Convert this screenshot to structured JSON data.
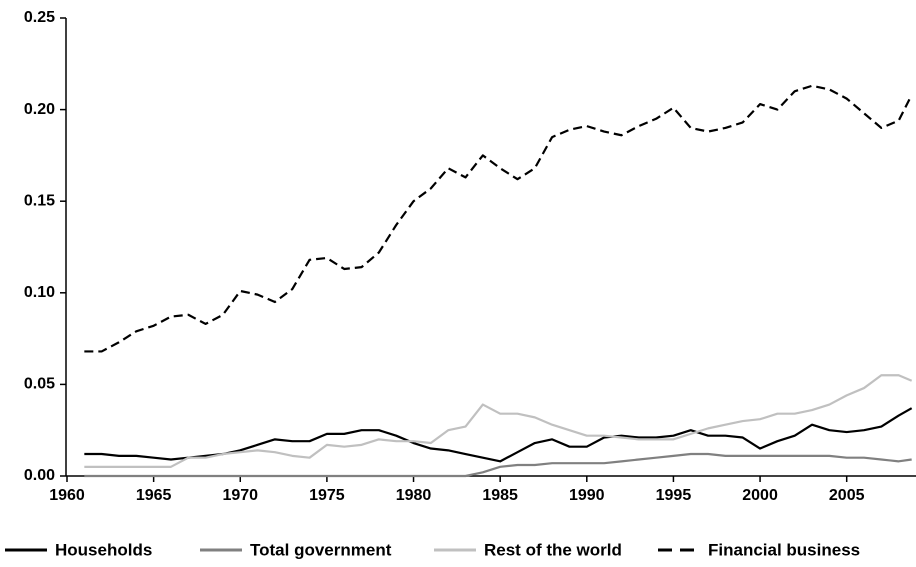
{
  "chart_data": {
    "type": "line",
    "x": [
      1961,
      1962,
      1963,
      1964,
      1965,
      1966,
      1967,
      1968,
      1969,
      1970,
      1971,
      1972,
      1973,
      1974,
      1975,
      1976,
      1977,
      1978,
      1979,
      1980,
      1981,
      1982,
      1983,
      1984,
      1985,
      1986,
      1987,
      1988,
      1989,
      1990,
      1991,
      1992,
      1993,
      1994,
      1995,
      1996,
      1997,
      1998,
      1999,
      2000,
      2001,
      2002,
      2003,
      2004,
      2005,
      2006,
      2007,
      2008,
      2008.75
    ],
    "series": [
      {
        "name": "Households",
        "color": "#000000",
        "dash": false,
        "values": [
          0.012,
          0.012,
          0.011,
          0.011,
          0.01,
          0.009,
          0.01,
          0.011,
          0.012,
          0.014,
          0.017,
          0.02,
          0.019,
          0.019,
          0.023,
          0.023,
          0.025,
          0.025,
          0.022,
          0.018,
          0.015,
          0.014,
          0.012,
          0.01,
          0.008,
          0.013,
          0.018,
          0.02,
          0.016,
          0.016,
          0.021,
          0.022,
          0.021,
          0.021,
          0.022,
          0.025,
          0.022,
          0.022,
          0.021,
          0.015,
          0.019,
          0.022,
          0.028,
          0.025,
          0.024,
          0.025,
          0.027,
          0.033,
          0.037
        ]
      },
      {
        "name": "Total government",
        "color": "#808080",
        "dash": false,
        "values": [
          0,
          0,
          0,
          0,
          0,
          0,
          0,
          0,
          0,
          0,
          0,
          0,
          0,
          0,
          0,
          0,
          0,
          0,
          0,
          0,
          0,
          0,
          0,
          0.002,
          0.005,
          0.006,
          0.006,
          0.007,
          0.007,
          0.007,
          0.007,
          0.008,
          0.009,
          0.01,
          0.011,
          0.012,
          0.012,
          0.011,
          0.011,
          0.011,
          0.011,
          0.011,
          0.011,
          0.011,
          0.01,
          0.01,
          0.009,
          0.008,
          0.009
        ]
      },
      {
        "name": "Rest of the world",
        "color": "#c0c0c0",
        "dash": false,
        "values": [
          0.005,
          0.005,
          0.005,
          0.005,
          0.005,
          0.005,
          0.01,
          0.01,
          0.012,
          0.013,
          0.014,
          0.013,
          0.011,
          0.01,
          0.017,
          0.016,
          0.017,
          0.02,
          0.019,
          0.019,
          0.018,
          0.025,
          0.027,
          0.039,
          0.034,
          0.034,
          0.032,
          0.028,
          0.025,
          0.022,
          0.022,
          0.021,
          0.02,
          0.02,
          0.02,
          0.023,
          0.026,
          0.028,
          0.03,
          0.031,
          0.034,
          0.034,
          0.036,
          0.039,
          0.044,
          0.048,
          0.055,
          0.055,
          0.052
        ]
      },
      {
        "name": "Financial business",
        "color": "#000000",
        "dash": true,
        "values": [
          0.068,
          0.068,
          0.073,
          0.079,
          0.082,
          0.087,
          0.088,
          0.083,
          0.088,
          0.101,
          0.099,
          0.095,
          0.102,
          0.118,
          0.119,
          0.113,
          0.114,
          0.122,
          0.137,
          0.15,
          0.157,
          0.168,
          0.163,
          0.175,
          0.168,
          0.162,
          0.168,
          0.185,
          0.189,
          0.191,
          0.188,
          0.186,
          0.191,
          0.195,
          0.201,
          0.19,
          0.188,
          0.19,
          0.193,
          0.203,
          0.2,
          0.21,
          0.213,
          0.211,
          0.206,
          0.198,
          0.19,
          0.194,
          0.208
        ]
      }
    ],
    "xlim": [
      1960,
      2009
    ],
    "xticks": [
      1960,
      1965,
      1970,
      1975,
      1980,
      1985,
      1990,
      1995,
      2000,
      2005
    ],
    "ylim": [
      0,
      0.25
    ],
    "yticks": [
      {
        "value": 0,
        "label": "0.00"
      },
      {
        "value": 0.05,
        "label": "0.05"
      },
      {
        "value": 0.1,
        "label": "0.10"
      },
      {
        "value": 0.15,
        "label": "0.15"
      },
      {
        "value": 0.2,
        "label": "0.20"
      },
      {
        "value": 0.25,
        "label": "0.25"
      }
    ],
    "legend": "bottom"
  }
}
